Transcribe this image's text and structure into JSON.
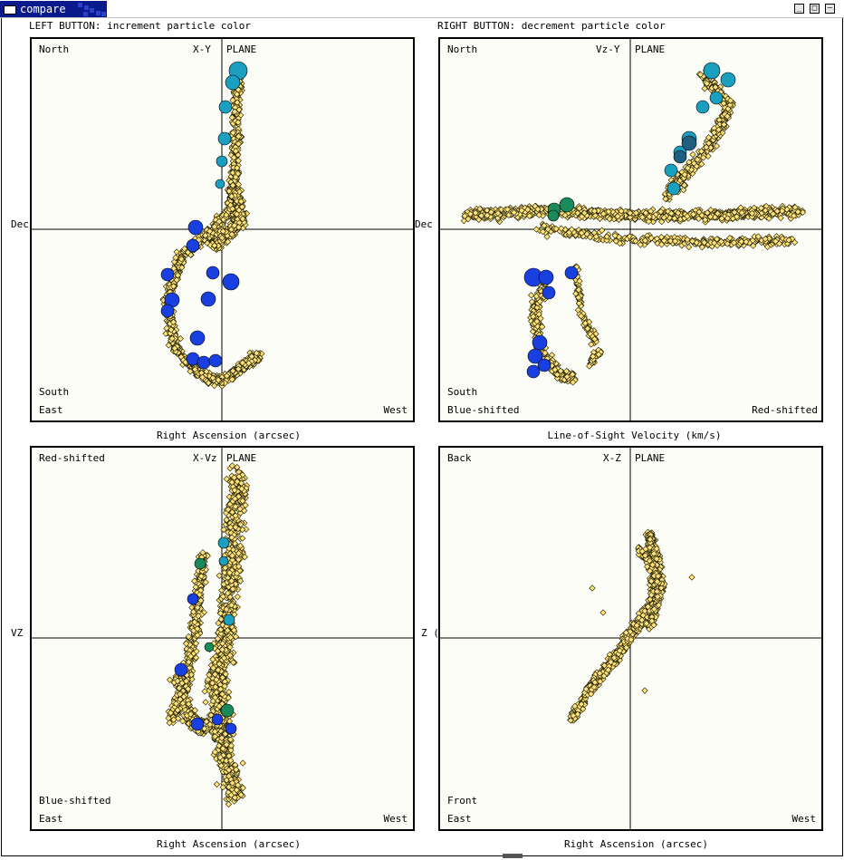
{
  "window": {
    "title": "compare",
    "minimize_icon": "minimize-icon",
    "maximize_icon": "maximize-icon",
    "close_icon": "close-icon"
  },
  "captions": {
    "left_button": "LEFT BUTTON: increment particle color",
    "right_button": "RIGHT BUTTON: decrement particle color"
  },
  "panels": [
    {
      "id": "xy",
      "title": "X-Y",
      "plane": "PLANE",
      "top_left": "North",
      "bottom_left_1": "South",
      "bottom_left_2": "East",
      "bottom_right": "West",
      "side_label": "Dec",
      "axis_title": "Right Ascension (arcsec)"
    },
    {
      "id": "vzy",
      "title": "Vz-Y",
      "plane": "PLANE",
      "top_left": "North",
      "bottom_left_1": "South",
      "bottom_left_2": "Blue-shifted",
      "bottom_right": "Red-shifted",
      "side_label": "Dec",
      "axis_title": "Line-of-Sight Velocity (km/s)"
    },
    {
      "id": "xvz",
      "title": "X-Vz",
      "plane": "PLANE",
      "top_left": "Red-shifted",
      "bottom_left_1": "Blue-shifted",
      "bottom_left_2": "East",
      "bottom_right": "West",
      "side_label": "VZ",
      "axis_title": "Right Ascension (arcsec)"
    },
    {
      "id": "xz",
      "title": "X-Z",
      "plane": "PLANE",
      "top_left": "Back",
      "bottom_left_1": "Front",
      "bottom_left_2": "East",
      "bottom_right": "West",
      "side_label": "Z (",
      "axis_title": "Right Ascension (arcsec)"
    }
  ],
  "colors": {
    "particle": "#ffe27a",
    "particle_outline": "#1a1a00",
    "blue_group": "#1a3fe0",
    "teal_group": "#1a9fbf",
    "green_group": "#1a8a5a",
    "dark_teal_group": "#1f5f80",
    "panel_bg": "#fcfdf6",
    "title_bar": "#0a1a8c"
  }
}
